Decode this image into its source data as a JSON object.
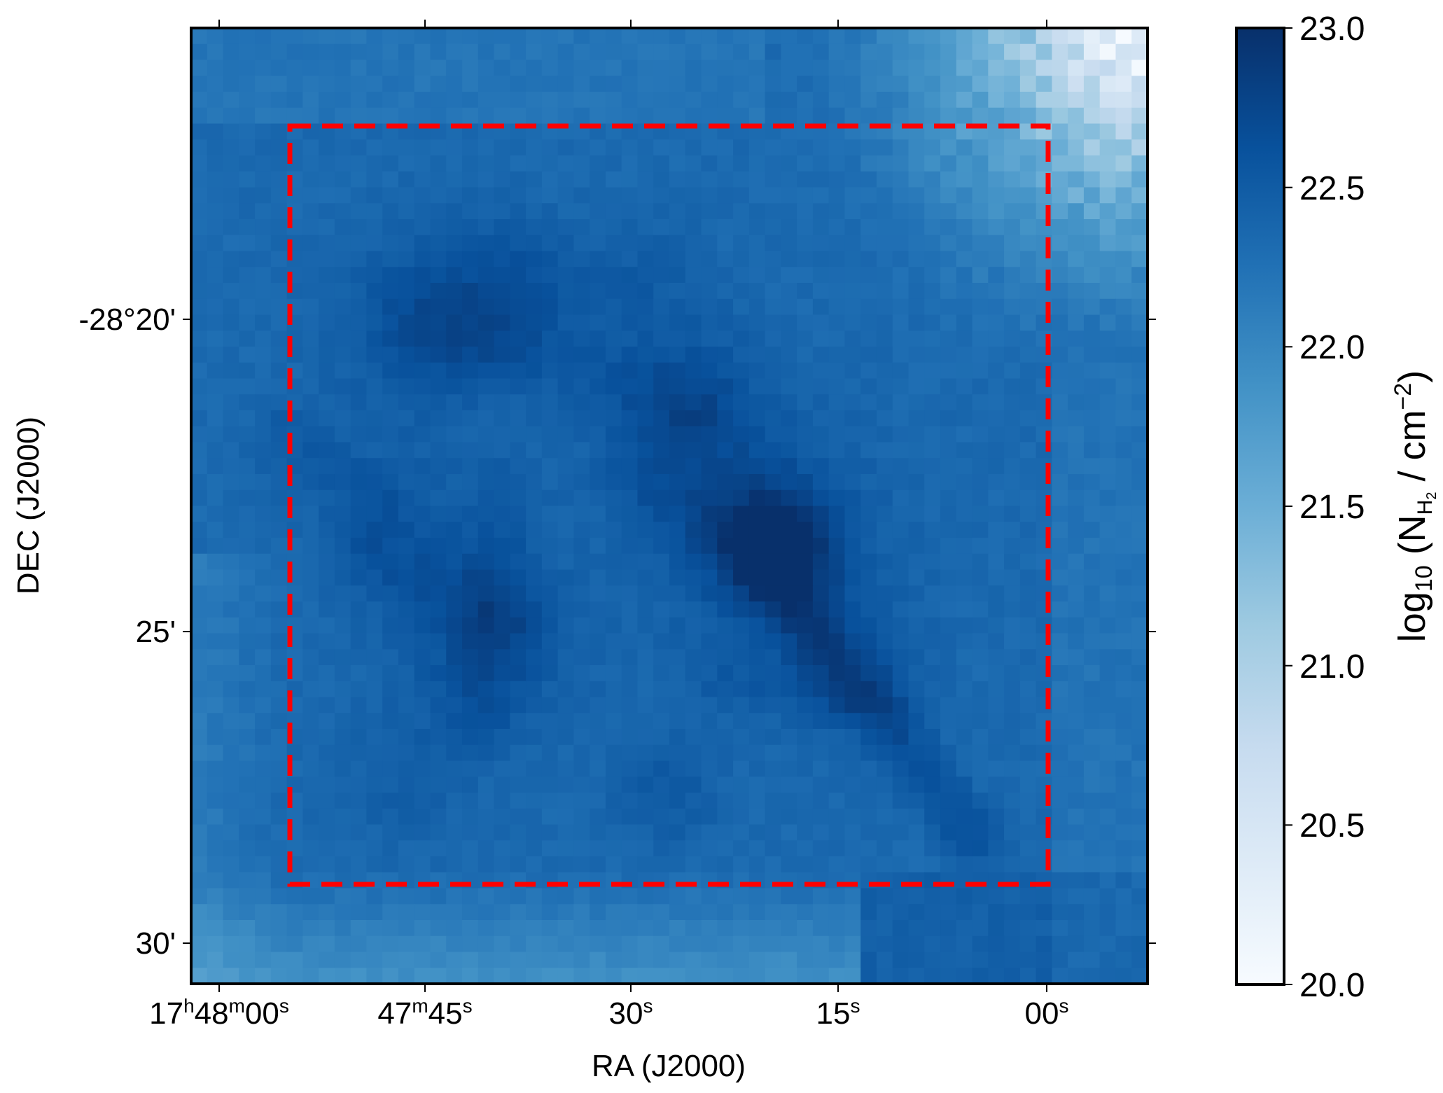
{
  "chart_data": {
    "type": "heatmap",
    "title": "",
    "xlabel": "RA (J2000)",
    "ylabel": "DEC (J2000)",
    "x_ticks": [
      {
        "main": "17",
        "sup1": "h",
        "mid": "48",
        "sup2": "m",
        "end": "00",
        "sup3": "s"
      },
      {
        "main": "47",
        "sup1": "m",
        "mid": "45",
        "sup2": "s"
      },
      {
        "main": "30",
        "sup1": "s"
      },
      {
        "main": "15",
        "sup1": "s"
      },
      {
        "main": "00",
        "sup1": "s"
      }
    ],
    "y_ticks": [
      "-28°20'",
      "25'",
      "30'"
    ],
    "colorbar": {
      "colormap": "Blues",
      "range": [
        20.0,
        23.0
      ],
      "ticks": [
        "23.0",
        "22.5",
        "22.0",
        "21.5",
        "21.0",
        "20.5",
        "20.0"
      ],
      "label_prefix": "log",
      "label_sub": "10",
      "label_open": " (N",
      "label_sub_H": "H",
      "label_sub_2": "2",
      "label_mid": " / cm",
      "label_sup": "−2",
      "label_close": ")"
    },
    "box": {
      "style": "dashed",
      "color": "#ff0000"
    },
    "map_value_range": [
      20.0,
      23.0
    ],
    "features": [
      {
        "desc": "peak",
        "value": 23.0
      },
      {
        "desc": "background",
        "value": 22.5
      },
      {
        "desc": "low-density corner top-right",
        "value": 20.2
      }
    ]
  }
}
